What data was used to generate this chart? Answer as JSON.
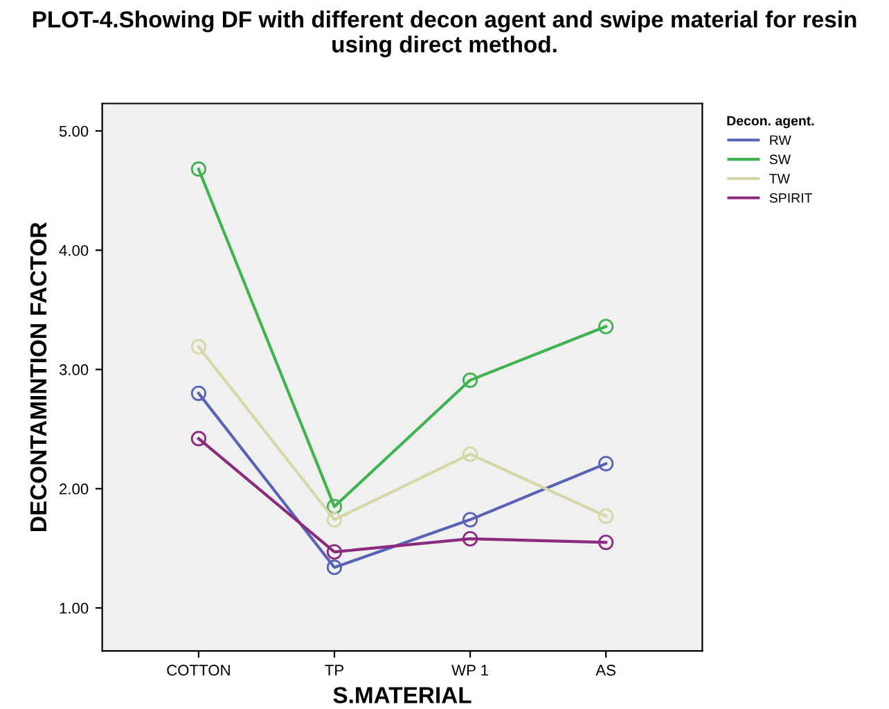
{
  "chart_data": {
    "type": "line",
    "title": "PLOT-4.Showing DF with different decon agent and swipe material for resin using direct method.",
    "xlabel": "S.MATERIAL",
    "ylabel": "DECONTAMINTION FACTOR",
    "legend_title": "Decon. agent.",
    "categories": [
      "COTTON",
      "TP",
      "WP 1",
      "AS"
    ],
    "series": [
      {
        "name": "RW",
        "color": "#5a62b8",
        "values": [
          2.8,
          1.34,
          1.74,
          2.21
        ]
      },
      {
        "name": "SW",
        "color": "#3fb34f",
        "values": [
          4.68,
          1.85,
          2.91,
          3.36
        ]
      },
      {
        "name": "TW",
        "color": "#d6d6a6",
        "values": [
          3.19,
          1.74,
          2.29,
          1.77
        ]
      },
      {
        "name": "SPIRIT",
        "color": "#8b2a7e",
        "values": [
          2.42,
          1.47,
          1.58,
          1.55
        ]
      }
    ],
    "ylim": [
      0.64,
      5.23
    ],
    "yticks": [
      {
        "value": 1,
        "label": "1.00"
      },
      {
        "value": 2,
        "label": "2.00"
      },
      {
        "value": 3,
        "label": "3.00"
      },
      {
        "value": 4,
        "label": "4.00"
      },
      {
        "value": 5,
        "label": "5.00"
      }
    ],
    "marker": "circle",
    "line_style": "solid",
    "grid": false,
    "legend": "top right"
  }
}
